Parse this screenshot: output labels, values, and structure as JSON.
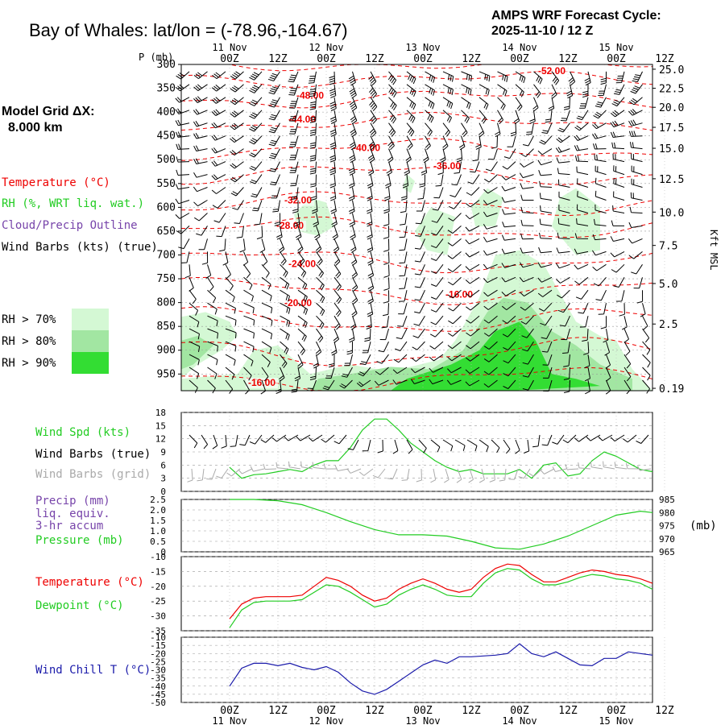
{
  "header": {
    "title": "Bay of Whales:  lat/lon = (-78.96,-164.67)",
    "cycle_line1": "AMPS WRF Forecast Cycle:",
    "cycle_line2": "2025-11-10 / 12  Z"
  },
  "left_labels": {
    "grid_line1": "Model Grid ΔX:",
    "grid_line2": "8.000 km",
    "temperature": "Temperature (°C)",
    "rh": "RH (%, WRT liq. wat.)",
    "cloud": "Cloud/Precip Outline",
    "wind_barbs": "Wind Barbs (kts) (true)",
    "rh70": "RH > 70%",
    "rh80": "RH > 80%",
    "rh90": "RH > 90%"
  },
  "colors": {
    "rh70": "#d4f8d4",
    "rh80": "#a2e6a2",
    "rh90": "#33dd33",
    "temp": "#ee0000",
    "green": "#22cc22",
    "purple": "#7744aa",
    "blue": "#1a1aaa",
    "gray": "#aaaaaa"
  },
  "time_axis": {
    "tick_labels": [
      "00Z",
      "12Z",
      "00Z",
      "12Z",
      "00Z",
      "12Z",
      "00Z",
      "12Z",
      "00Z",
      "12Z"
    ],
    "day_labels": [
      "11 Nov",
      "12 Nov",
      "13 Nov",
      "14 Nov",
      "15 Nov"
    ]
  },
  "chart_data": [
    {
      "type": "contour",
      "title": "Time-height cross section",
      "ylabel_left": "P (mb)",
      "ylabel_right": "Kft MSL",
      "pressure_ticks": [
        "300",
        "350",
        "400",
        "450",
        "500",
        "550",
        "600",
        "650",
        "700",
        "750",
        "800",
        "850",
        "900",
        "950"
      ],
      "height_ticks": [
        {
          "p": 310,
          "label": "25.0"
        },
        {
          "p": 350,
          "label": "22.5"
        },
        {
          "p": 390,
          "label": "20.0"
        },
        {
          "p": 432,
          "label": "17.5"
        },
        {
          "p": 476,
          "label": "15.0"
        },
        {
          "p": 540,
          "label": "12.5"
        },
        {
          "p": 610,
          "label": "10.0"
        },
        {
          "p": 680,
          "label": "7.5"
        },
        {
          "p": 760,
          "label": "5.0"
        },
        {
          "p": 845,
          "label": "2.5"
        },
        {
          "p": 980,
          "label": "0.19"
        }
      ],
      "temperature_contour_labels": [
        {
          "t": -52.0,
          "label": "-52.00",
          "time_h": 80,
          "p": 320
        },
        {
          "t": -48.0,
          "label": "-48.00",
          "time_h": 20,
          "p": 372
        },
        {
          "t": -44.0,
          "label": "-44.00",
          "time_h": 18,
          "p": 422
        },
        {
          "t": -40.0,
          "label": "-40.00",
          "time_h": 34,
          "p": 482
        },
        {
          "t": -36.0,
          "label": "-36.00",
          "time_h": 54,
          "p": 520
        },
        {
          "t": -32.0,
          "label": "-32.00",
          "time_h": 17,
          "p": 592
        },
        {
          "t": -28.0,
          "label": "-28.00",
          "time_h": 15,
          "p": 645
        },
        {
          "t": -24.0,
          "label": "-24.00",
          "time_h": 18,
          "p": 725
        },
        {
          "t": -20.0,
          "label": "-20.00",
          "time_h": 17,
          "p": 807
        },
        {
          "t": -16.0,
          "label": "-16.00",
          "time_h": 57,
          "p": 790
        },
        {
          "t": -16.0,
          "label": "-16.00",
          "time_h": 8,
          "p": 975
        }
      ]
    },
    {
      "type": "line",
      "title": "Wind Speed",
      "labels": [
        "Wind Spd (kts)",
        "Wind Barbs (true)",
        "Wind Barbs (grid)"
      ],
      "ylim": [
        0,
        18
      ],
      "yticks": [
        "0",
        "3",
        "6",
        "9",
        "12",
        "15",
        "18"
      ],
      "x_hours": [
        0,
        3,
        6,
        9,
        12,
        15,
        18,
        21,
        24,
        27,
        30,
        33,
        36,
        39,
        42,
        45,
        48,
        51,
        54,
        57,
        60,
        63,
        66,
        69,
        72,
        75,
        78,
        81,
        84,
        87,
        90,
        93,
        96,
        99,
        102,
        105
      ],
      "wind_speed_kts": [
        5.5,
        3,
        3.8,
        4,
        4.5,
        5,
        4.5,
        6,
        7,
        7,
        10,
        14,
        16.5,
        16.5,
        14,
        11,
        9,
        7,
        5.5,
        4.5,
        5,
        4,
        4,
        4,
        5,
        3,
        6,
        6.5,
        3.5,
        4,
        7,
        9,
        8,
        6.5,
        5,
        4.5
      ]
    },
    {
      "type": "line",
      "title": "Precip and Pressure",
      "labels": [
        "Precip (mm)",
        "liq. equiv.",
        "3-hr accum",
        "Pressure (mb)"
      ],
      "precip_ylim": [
        0,
        2.5
      ],
      "precip_ticks": [
        "0",
        "0.5",
        "1.0",
        "1.5",
        "2.0",
        "2.5"
      ],
      "pressure_ylim": [
        965,
        985
      ],
      "pressure_ticks": [
        "985",
        "980",
        "975",
        "970",
        "965"
      ],
      "pressure_unit": "(mb)",
      "x_hours": [
        0,
        6,
        12,
        18,
        24,
        30,
        36,
        42,
        48,
        54,
        60,
        66,
        72,
        78,
        84,
        90,
        96,
        102,
        105
      ],
      "pressure_mb": [
        985,
        985,
        984.5,
        983,
        980,
        976.5,
        973.5,
        971.5,
        971.5,
        971,
        969,
        966.5,
        966,
        968,
        971,
        975,
        979,
        980.5,
        980
      ]
    },
    {
      "type": "line",
      "title": "Temperature and Dewpoint",
      "labels": [
        "Temperature (°C)",
        "Dewpoint (°C)"
      ],
      "ylim": [
        -35,
        -10
      ],
      "yticks": [
        "-10",
        "-15",
        "-20",
        "-25",
        "-30",
        "-35"
      ],
      "x_hours": [
        0,
        3,
        6,
        9,
        12,
        15,
        18,
        21,
        24,
        27,
        30,
        33,
        36,
        39,
        42,
        45,
        48,
        51,
        54,
        57,
        60,
        63,
        66,
        69,
        72,
        75,
        78,
        81,
        84,
        87,
        90,
        93,
        96,
        99,
        102,
        105
      ],
      "temperature_c": [
        -31,
        -26,
        -24,
        -23.5,
        -23.5,
        -23.5,
        -23,
        -20,
        -17,
        -18,
        -20,
        -23,
        -25,
        -24,
        -21,
        -19,
        -17.5,
        -19,
        -21,
        -22,
        -21,
        -17,
        -14,
        -12.5,
        -13,
        -16,
        -18.5,
        -18.5,
        -17,
        -15.5,
        -14.5,
        -15,
        -16,
        -16.5,
        -17.5,
        -19
      ],
      "dewpoint_c": [
        -34,
        -28,
        -25.5,
        -25,
        -25,
        -25,
        -24.5,
        -22,
        -19.5,
        -20,
        -22,
        -24.5,
        -27,
        -26,
        -23,
        -21,
        -19.5,
        -21,
        -23,
        -23.5,
        -23.5,
        -19,
        -15.5,
        -14,
        -14.5,
        -17.5,
        -19.5,
        -19.5,
        -18.5,
        -17,
        -16,
        -16.5,
        -17.5,
        -18,
        -19,
        -21
      ]
    },
    {
      "type": "line",
      "title": "Wind Chill",
      "labels": [
        "Wind Chill T (°C)"
      ],
      "ylim": [
        -50,
        -10
      ],
      "yticks": [
        "-10",
        "-15",
        "-20",
        "-25",
        "-30",
        "-35",
        "-40",
        "-45",
        "-50"
      ],
      "x_hours": [
        0,
        3,
        6,
        9,
        12,
        15,
        18,
        21,
        24,
        27,
        30,
        33,
        36,
        39,
        42,
        45,
        48,
        51,
        54,
        57,
        60,
        63,
        66,
        69,
        72,
        75,
        78,
        81,
        84,
        87,
        90,
        93,
        96,
        99,
        102,
        105
      ],
      "wind_chill_c": [
        -40,
        -29,
        -26,
        -26,
        -27.5,
        -26,
        -28.5,
        -30,
        -28,
        -31.5,
        -38,
        -43,
        -45,
        -42,
        -37,
        -32,
        -27,
        -24,
        -26,
        -22,
        -22,
        -21.5,
        -21,
        -20,
        -14,
        -20,
        -22,
        -19,
        -23,
        -27,
        -27.5,
        -23,
        -23,
        -19,
        -20,
        -21
      ]
    }
  ]
}
